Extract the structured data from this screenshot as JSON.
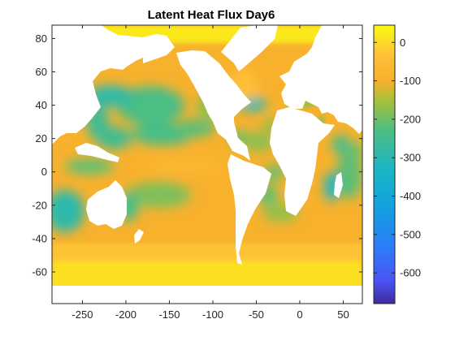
{
  "chart_data": {
    "type": "heatmap",
    "title": "Latent Heat Flux Day6",
    "xlabel": "",
    "ylabel": "",
    "xlim": [
      -285,
      72
    ],
    "ylim": [
      -79,
      88
    ],
    "x_ticks": [
      -250,
      -200,
      -150,
      -100,
      -50,
      0,
      50
    ],
    "y_ticks": [
      80,
      60,
      40,
      20,
      0,
      -20,
      -40,
      -60
    ],
    "x_tick_labels": [
      "-250",
      "-200",
      "-150",
      "-100",
      "-50",
      "0",
      "50"
    ],
    "y_tick_labels": [
      "80",
      "60",
      "40",
      "20",
      "0",
      "-20",
      "-40",
      "-60"
    ],
    "colorbar": {
      "range": [
        -680,
        45
      ],
      "ticks": [
        0,
        -100,
        -200,
        -300,
        -400,
        -500,
        -600
      ],
      "tick_labels": [
        "0",
        "-100",
        "-200",
        "-300",
        "-400",
        "-500",
        "-600"
      ],
      "colormap": "parula",
      "colormap_stops": [
        {
          "value": 45,
          "color": "#f9fb0e"
        },
        {
          "value": -35,
          "color": "#fec038"
        },
        {
          "value": -100,
          "color": "#f8b02c"
        },
        {
          "value": -150,
          "color": "#a7c03a"
        },
        {
          "value": -230,
          "color": "#4cbe84"
        },
        {
          "value": -330,
          "color": "#1bb6c4"
        },
        {
          "value": -430,
          "color": "#12a1e0"
        },
        {
          "value": -530,
          "color": "#2c7df7"
        },
        {
          "value": -620,
          "color": "#4a55f5"
        },
        {
          "value": -680,
          "color": "#3e2a9c"
        }
      ]
    },
    "land_color": "#ffffff",
    "regions": [
      {
        "name": "global-ocean-background",
        "value": -95
      },
      {
        "name": "arctic-ocean",
        "value": 20
      },
      {
        "name": "southern-ocean-ice",
        "value": 10
      },
      {
        "name": "antarctic-coast-band",
        "value": 5
      },
      {
        "name": "subantarctic-belt",
        "value": -30
      },
      {
        "name": "kuroshio-extension",
        "value": -290
      },
      {
        "name": "north-pacific-center",
        "value": -230
      },
      {
        "name": "east-asian-marginal-seas",
        "value": -255
      },
      {
        "name": "north-pacific-trades",
        "value": -235
      },
      {
        "name": "philippine-sea",
        "value": -250
      },
      {
        "name": "hawaii-trades",
        "value": -215
      },
      {
        "name": "eastern-north-pacific",
        "value": -175
      },
      {
        "name": "equatorial-cold-tongue",
        "value": -60
      },
      {
        "name": "indonesian-seas",
        "value": -210
      },
      {
        "name": "south-pacific-trades",
        "value": -185
      },
      {
        "name": "indian-ocean-west-australia",
        "value": -290
      },
      {
        "name": "south-indian-ocean",
        "value": -215
      },
      {
        "name": "gulf-stream",
        "value": -320
      },
      {
        "name": "caribbean-sea",
        "value": -200
      },
      {
        "name": "tropical-north-atlantic",
        "value": -175
      },
      {
        "name": "canary-current",
        "value": -165
      },
      {
        "name": "gulf-of-guinea",
        "value": -210
      },
      {
        "name": "brazil-current",
        "value": -210
      },
      {
        "name": "south-atlantic",
        "value": -165
      },
      {
        "name": "mozambique-channel",
        "value": -330
      },
      {
        "name": "tasman-sea",
        "value": -240
      },
      {
        "name": "labrador-greenland",
        "value": -40
      },
      {
        "name": "mediterranean",
        "value": -160
      },
      {
        "name": "red-sea",
        "value": -180
      },
      {
        "name": "arabian-sea",
        "value": -235
      },
      {
        "name": "bay-of-bengal",
        "value": -200
      }
    ]
  }
}
